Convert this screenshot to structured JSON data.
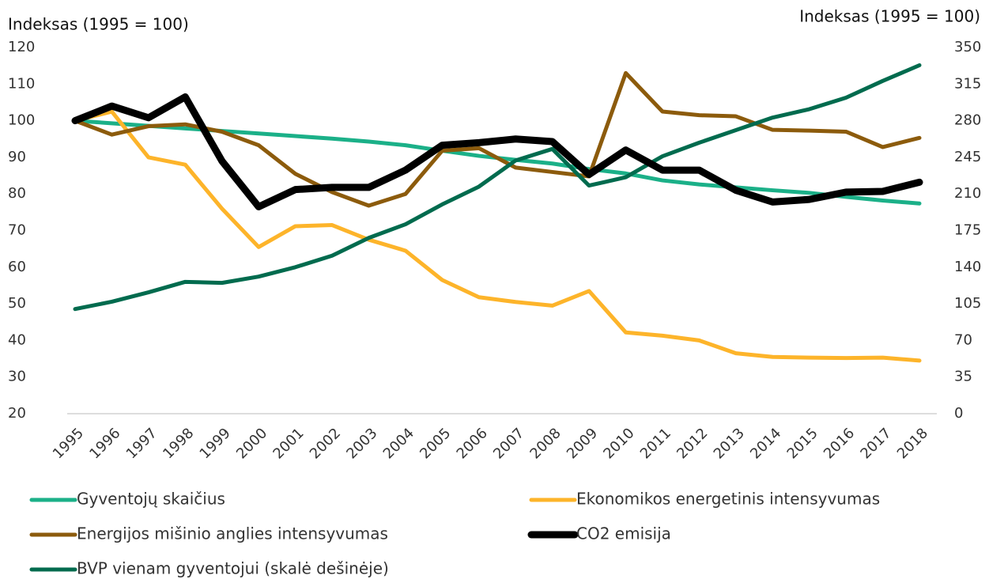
{
  "chart_data": {
    "type": "line",
    "y_label": "Indeksas (1995 = 100)",
    "y2_label": "Indeksas (1995 = 100)",
    "categories": [
      "1995",
      "1996",
      "1997",
      "1998",
      "1999",
      "2000",
      "2001",
      "2002",
      "2003",
      "2004",
      "2005",
      "2006",
      "2007",
      "2008",
      "2009",
      "2010",
      "2011",
      "2012",
      "2013",
      "2014",
      "2015",
      "2016",
      "2017",
      "2018"
    ],
    "ylim": [
      20,
      120
    ],
    "yticks": [
      20,
      30,
      40,
      50,
      60,
      70,
      80,
      90,
      100,
      110,
      120
    ],
    "y2lim": [
      0,
      350
    ],
    "y2ticks": [
      0,
      35,
      70,
      105,
      140,
      175,
      210,
      245,
      280,
      315,
      350
    ],
    "series": [
      {
        "name": "Gyventojų skaičius",
        "color": "#1bb088",
        "values": [
          100,
          99.3,
          98.6,
          97.9,
          97.2,
          96.5,
          95.8,
          95.1,
          94.3,
          93.3,
          91.8,
          90.4,
          89.3,
          88.3,
          86.8,
          85.6,
          83.7,
          82.6,
          81.8,
          81.0,
          80.3,
          79.2,
          78.2,
          77.4
        ]
      },
      {
        "name": "Ekonomikos energetinis intensyvumas",
        "color": "#fdb42a",
        "values": [
          100,
          102.5,
          90,
          88,
          76,
          65.5,
          71.2,
          71.5,
          67.5,
          64.5,
          56.5,
          51.8,
          50.5,
          49.5,
          53.5,
          42.2,
          41.3,
          40,
          36.5,
          35.5,
          35.3,
          35.2,
          35.3,
          34.5
        ]
      },
      {
        "name": "Energijos mišinio anglies intensyvumas",
        "color": "#8c5b0c",
        "values": [
          100,
          96.2,
          98.5,
          99,
          97,
          93.3,
          85.5,
          80.5,
          76.8,
          80,
          91.8,
          92.5,
          87.2,
          86,
          84.8,
          113,
          102.5,
          101.5,
          101.2,
          97.5,
          97.3,
          97,
          92.8,
          95.3
        ]
      },
      {
        "name": "CO2 emisija",
        "color": "#000000",
        "values": [
          100,
          104,
          100.8,
          106.5,
          89,
          76.5,
          81.2,
          81.8,
          81.8,
          86.5,
          93.3,
          94,
          95,
          94.3,
          85.3,
          92,
          86.5,
          86.5,
          81,
          77.8,
          78.5,
          80.5,
          80.7,
          83.2
        ]
      },
      {
        "name": "BVP vienam gyventojui (skalė dešinėje)",
        "color": "#006b4e",
        "axis": "y2",
        "values": [
          100,
          107,
          116,
          126,
          125,
          131,
          140,
          151,
          168,
          181,
          200,
          217,
          242,
          253,
          218,
          226,
          246,
          259,
          271,
          283,
          291,
          302,
          318,
          333
        ]
      }
    ]
  }
}
